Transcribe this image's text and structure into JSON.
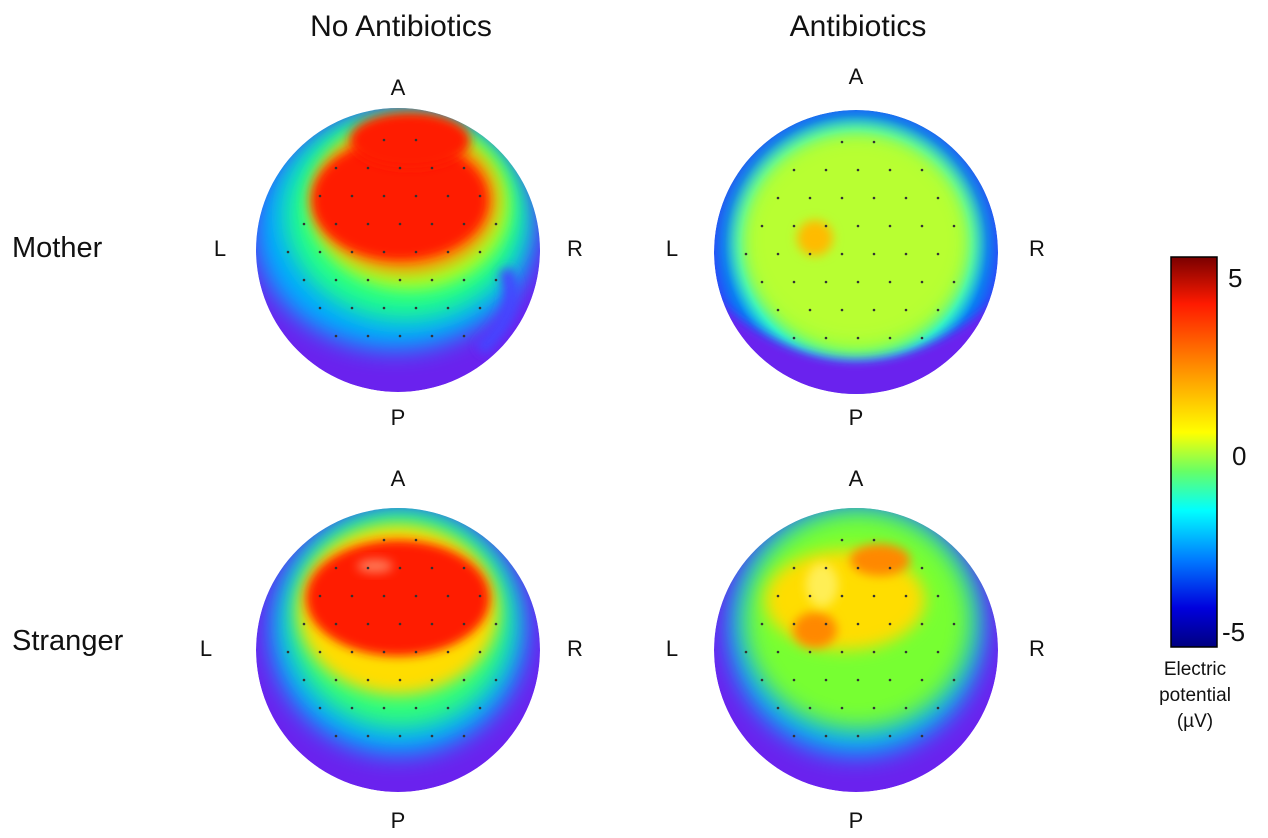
{
  "columns": [
    "No Antibiotics",
    "Antibiotics"
  ],
  "rows": [
    "Mother",
    "Stranger"
  ],
  "directions": {
    "anterior": "A",
    "posterior": "P",
    "left": "L",
    "right": "R"
  },
  "colorbar": {
    "ticks": [
      "5",
      "0",
      "-5"
    ],
    "caption_lines": [
      "Electric",
      "potential",
      "(µV)"
    ],
    "range": [
      -5,
      5
    ],
    "colors": [
      "#8b0000",
      "#ff2200",
      "#ff9900",
      "#ffff00",
      "#00ff88",
      "#00ffff",
      "#0066ff",
      "#0000cc",
      "#000080"
    ]
  },
  "maps": [
    {
      "row": "Mother",
      "column": "No Antibiotics",
      "peak_sign": "positive",
      "peak_region": "anterior"
    },
    {
      "row": "Mother",
      "column": "Antibiotics",
      "peak_sign": "positive",
      "peak_region": "left-central"
    },
    {
      "row": "Stranger",
      "column": "No Antibiotics",
      "peak_sign": "positive",
      "peak_region": "anterior"
    },
    {
      "row": "Stranger",
      "column": "Antibiotics",
      "peak_sign": "positive",
      "peak_region": "left-anterior"
    }
  ]
}
